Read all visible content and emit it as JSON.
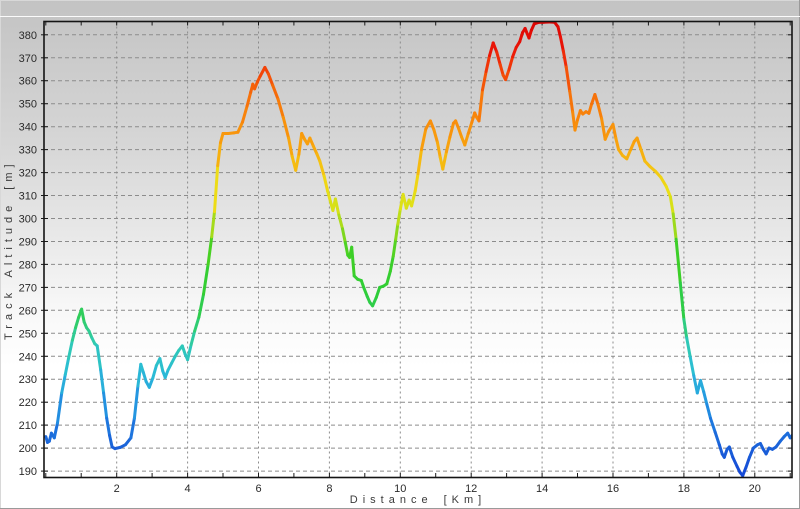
{
  "window": {
    "background_top": "#c3c3c3",
    "background_bottom": "#ffffff",
    "highlight_line": "#fbfbfb"
  },
  "colors": {
    "axis_border": "#141414",
    "grid": "#8c8c8c",
    "tick": "#1a1a1a",
    "tick_text": "#2a2a2a",
    "axis_title_text": "#3a3a3a"
  },
  "chart_data": {
    "type": "line",
    "title": "",
    "xlabel": "Distance [Km]",
    "ylabel": "Track Altitude [m]",
    "xlim": [
      -0.05,
      21.05
    ],
    "ylim": [
      187.2,
      385.8
    ],
    "x_ticks": [
      2,
      4,
      6,
      8,
      10,
      12,
      14,
      16,
      18,
      20
    ],
    "x_minor_step": 1,
    "y_ticks": [
      190,
      200,
      210,
      220,
      230,
      240,
      250,
      260,
      270,
      280,
      290,
      300,
      310,
      320,
      330,
      340,
      350,
      360,
      370,
      380
    ],
    "grid": "dashed",
    "legend_position": "none",
    "line_width": 3,
    "color_mode": "altitude-rainbow",
    "colormap": [
      [
        188,
        "#1548d8"
      ],
      [
        200,
        "#1a5fd8"
      ],
      [
        212,
        "#1f7de0"
      ],
      [
        224,
        "#26a3e0"
      ],
      [
        234,
        "#2bbdd4"
      ],
      [
        246,
        "#2fcbb0"
      ],
      [
        256,
        "#2fcd62"
      ],
      [
        268,
        "#2ecd38"
      ],
      [
        285,
        "#40d024"
      ],
      [
        294,
        "#8ad81c"
      ],
      [
        303,
        "#cfe018"
      ],
      [
        312,
        "#ecdf16"
      ],
      [
        322,
        "#f4c312"
      ],
      [
        332,
        "#f8a30e"
      ],
      [
        344,
        "#f8870b"
      ],
      [
        356,
        "#f56709"
      ],
      [
        366,
        "#f23c08"
      ],
      [
        374,
        "#ea1507"
      ],
      [
        386,
        "#dc0404"
      ]
    ],
    "series": [
      {
        "name": "track-altitude",
        "points": [
          [
            0.0,
            205
          ],
          [
            0.05,
            202.5
          ],
          [
            0.1,
            203
          ],
          [
            0.16,
            206.5
          ],
          [
            0.24,
            204.5
          ],
          [
            0.33,
            211
          ],
          [
            0.45,
            224
          ],
          [
            0.55,
            232
          ],
          [
            0.64,
            239
          ],
          [
            0.75,
            247
          ],
          [
            0.84,
            252.5
          ],
          [
            0.93,
            257
          ],
          [
            1.01,
            260.5
          ],
          [
            1.08,
            255
          ],
          [
            1.15,
            252.5
          ],
          [
            1.22,
            251
          ],
          [
            1.3,
            248
          ],
          [
            1.38,
            245.5
          ],
          [
            1.45,
            244.5
          ],
          [
            1.55,
            234
          ],
          [
            1.63,
            224
          ],
          [
            1.72,
            213
          ],
          [
            1.8,
            205.5
          ],
          [
            1.87,
            200.5
          ],
          [
            1.95,
            199.8
          ],
          [
            2.1,
            200.3
          ],
          [
            2.25,
            201.5
          ],
          [
            2.4,
            204.5
          ],
          [
            2.5,
            213
          ],
          [
            2.6,
            227
          ],
          [
            2.68,
            236.5
          ],
          [
            2.75,
            233
          ],
          [
            2.83,
            229
          ],
          [
            2.92,
            226.5
          ],
          [
            3.02,
            230.5
          ],
          [
            3.12,
            236
          ],
          [
            3.22,
            239
          ],
          [
            3.3,
            233.5
          ],
          [
            3.37,
            230.8
          ],
          [
            3.45,
            234
          ],
          [
            3.55,
            237
          ],
          [
            3.65,
            240
          ],
          [
            3.75,
            242.5
          ],
          [
            3.85,
            244.5
          ],
          [
            3.93,
            241
          ],
          [
            4.0,
            238.5
          ],
          [
            4.1,
            245
          ],
          [
            4.2,
            251
          ],
          [
            4.32,
            257
          ],
          [
            4.45,
            267
          ],
          [
            4.58,
            280
          ],
          [
            4.68,
            292
          ],
          [
            4.76,
            303
          ],
          [
            4.85,
            323
          ],
          [
            4.93,
            333
          ],
          [
            5.0,
            337
          ],
          [
            5.15,
            337
          ],
          [
            5.3,
            337.3
          ],
          [
            5.42,
            337.6
          ],
          [
            5.55,
            342
          ],
          [
            5.68,
            349
          ],
          [
            5.78,
            355
          ],
          [
            5.84,
            358.5
          ],
          [
            5.89,
            356.5
          ],
          [
            5.97,
            359.5
          ],
          [
            6.05,
            362
          ],
          [
            6.18,
            365.8
          ],
          [
            6.28,
            363
          ],
          [
            6.4,
            358
          ],
          [
            6.55,
            352
          ],
          [
            6.7,
            344
          ],
          [
            6.85,
            335
          ],
          [
            6.95,
            327
          ],
          [
            7.05,
            321
          ],
          [
            7.14,
            328
          ],
          [
            7.22,
            337
          ],
          [
            7.3,
            334.5
          ],
          [
            7.38,
            332.5
          ],
          [
            7.45,
            335
          ],
          [
            7.55,
            331.5
          ],
          [
            7.65,
            328
          ],
          [
            7.73,
            325
          ],
          [
            7.85,
            318.5
          ],
          [
            7.95,
            312
          ],
          [
            8.03,
            307.5
          ],
          [
            8.1,
            303.5
          ],
          [
            8.17,
            308.5
          ],
          [
            8.27,
            301.5
          ],
          [
            8.37,
            295.5
          ],
          [
            8.45,
            289.5
          ],
          [
            8.52,
            284
          ],
          [
            8.57,
            283
          ],
          [
            8.63,
            287.5
          ],
          [
            8.7,
            275
          ],
          [
            8.8,
            273.5
          ],
          [
            8.9,
            273
          ],
          [
            8.98,
            269.5
          ],
          [
            9.07,
            266
          ],
          [
            9.14,
            263.5
          ],
          [
            9.22,
            262
          ],
          [
            9.32,
            265.5
          ],
          [
            9.42,
            270
          ],
          [
            9.52,
            270.5
          ],
          [
            9.62,
            271.5
          ],
          [
            9.72,
            277
          ],
          [
            9.8,
            283.5
          ],
          [
            9.87,
            291
          ],
          [
            9.93,
            297.5
          ],
          [
            10.0,
            304
          ],
          [
            10.08,
            310.5
          ],
          [
            10.17,
            304.5
          ],
          [
            10.25,
            308
          ],
          [
            10.32,
            305.5
          ],
          [
            10.42,
            312
          ],
          [
            10.5,
            319.5
          ],
          [
            10.6,
            330
          ],
          [
            10.72,
            339
          ],
          [
            10.85,
            342.5
          ],
          [
            10.95,
            338.5
          ],
          [
            11.05,
            333
          ],
          [
            11.13,
            326.5
          ],
          [
            11.2,
            321.5
          ],
          [
            11.3,
            329
          ],
          [
            11.4,
            335.5
          ],
          [
            11.5,
            341.5
          ],
          [
            11.56,
            342.5
          ],
          [
            11.65,
            339
          ],
          [
            11.73,
            335.5
          ],
          [
            11.82,
            332
          ],
          [
            11.92,
            337
          ],
          [
            12.02,
            342
          ],
          [
            12.1,
            346
          ],
          [
            12.16,
            344
          ],
          [
            12.22,
            342.5
          ],
          [
            12.32,
            356
          ],
          [
            12.42,
            364
          ],
          [
            12.52,
            371
          ],
          [
            12.62,
            376.5
          ],
          [
            12.72,
            372.5
          ],
          [
            12.82,
            367
          ],
          [
            12.9,
            362.5
          ],
          [
            12.97,
            360.5
          ],
          [
            13.07,
            365
          ],
          [
            13.17,
            370.5
          ],
          [
            13.27,
            374.5
          ],
          [
            13.37,
            377
          ],
          [
            13.45,
            381
          ],
          [
            13.52,
            382.8
          ],
          [
            13.58,
            380.5
          ],
          [
            13.63,
            378.6
          ],
          [
            13.7,
            382
          ],
          [
            13.78,
            384.8
          ],
          [
            13.9,
            385.4
          ],
          [
            14.05,
            385.5
          ],
          [
            14.2,
            385.6
          ],
          [
            14.35,
            385.5
          ],
          [
            14.45,
            383.5
          ],
          [
            14.52,
            379
          ],
          [
            14.6,
            373
          ],
          [
            14.68,
            366
          ],
          [
            14.78,
            355.5
          ],
          [
            14.86,
            346.5
          ],
          [
            14.93,
            338.5
          ],
          [
            15.0,
            343
          ],
          [
            15.08,
            347
          ],
          [
            15.15,
            345.5
          ],
          [
            15.24,
            346.5
          ],
          [
            15.32,
            345.8
          ],
          [
            15.4,
            350
          ],
          [
            15.49,
            354
          ],
          [
            15.58,
            349.5
          ],
          [
            15.68,
            343.5
          ],
          [
            15.78,
            334.5
          ],
          [
            15.88,
            338
          ],
          [
            16.0,
            341
          ],
          [
            16.08,
            335
          ],
          [
            16.16,
            330
          ],
          [
            16.27,
            327.5
          ],
          [
            16.39,
            326
          ],
          [
            16.5,
            330
          ],
          [
            16.6,
            333.5
          ],
          [
            16.68,
            335
          ],
          [
            16.78,
            330.5
          ],
          [
            16.9,
            325
          ],
          [
            17.05,
            322.5
          ],
          [
            17.2,
            320.5
          ],
          [
            17.35,
            318
          ],
          [
            17.5,
            314
          ],
          [
            17.62,
            309.5
          ],
          [
            17.7,
            302
          ],
          [
            17.78,
            291
          ],
          [
            17.9,
            272
          ],
          [
            18.0,
            256
          ],
          [
            18.08,
            248
          ],
          [
            18.18,
            239.5
          ],
          [
            18.28,
            231.5
          ],
          [
            18.38,
            224
          ],
          [
            18.47,
            229.5
          ],
          [
            18.56,
            224.5
          ],
          [
            18.65,
            219
          ],
          [
            18.75,
            213
          ],
          [
            18.88,
            207
          ],
          [
            19.0,
            201.5
          ],
          [
            19.08,
            197.5
          ],
          [
            19.14,
            196
          ],
          [
            19.22,
            199.5
          ],
          [
            19.28,
            200.5
          ],
          [
            19.38,
            196
          ],
          [
            19.5,
            192
          ],
          [
            19.58,
            189.5
          ],
          [
            19.66,
            188
          ],
          [
            19.75,
            191.5
          ],
          [
            19.85,
            196
          ],
          [
            19.96,
            200
          ],
          [
            20.08,
            201.5
          ],
          [
            20.16,
            202
          ],
          [
            20.24,
            199.5
          ],
          [
            20.32,
            197.5
          ],
          [
            20.4,
            200
          ],
          [
            20.5,
            199.5
          ],
          [
            20.6,
            200.5
          ],
          [
            20.72,
            203
          ],
          [
            20.83,
            205
          ],
          [
            20.93,
            206.5
          ],
          [
            21.0,
            204.5
          ],
          [
            21.05,
            205.5
          ]
        ]
      }
    ]
  }
}
